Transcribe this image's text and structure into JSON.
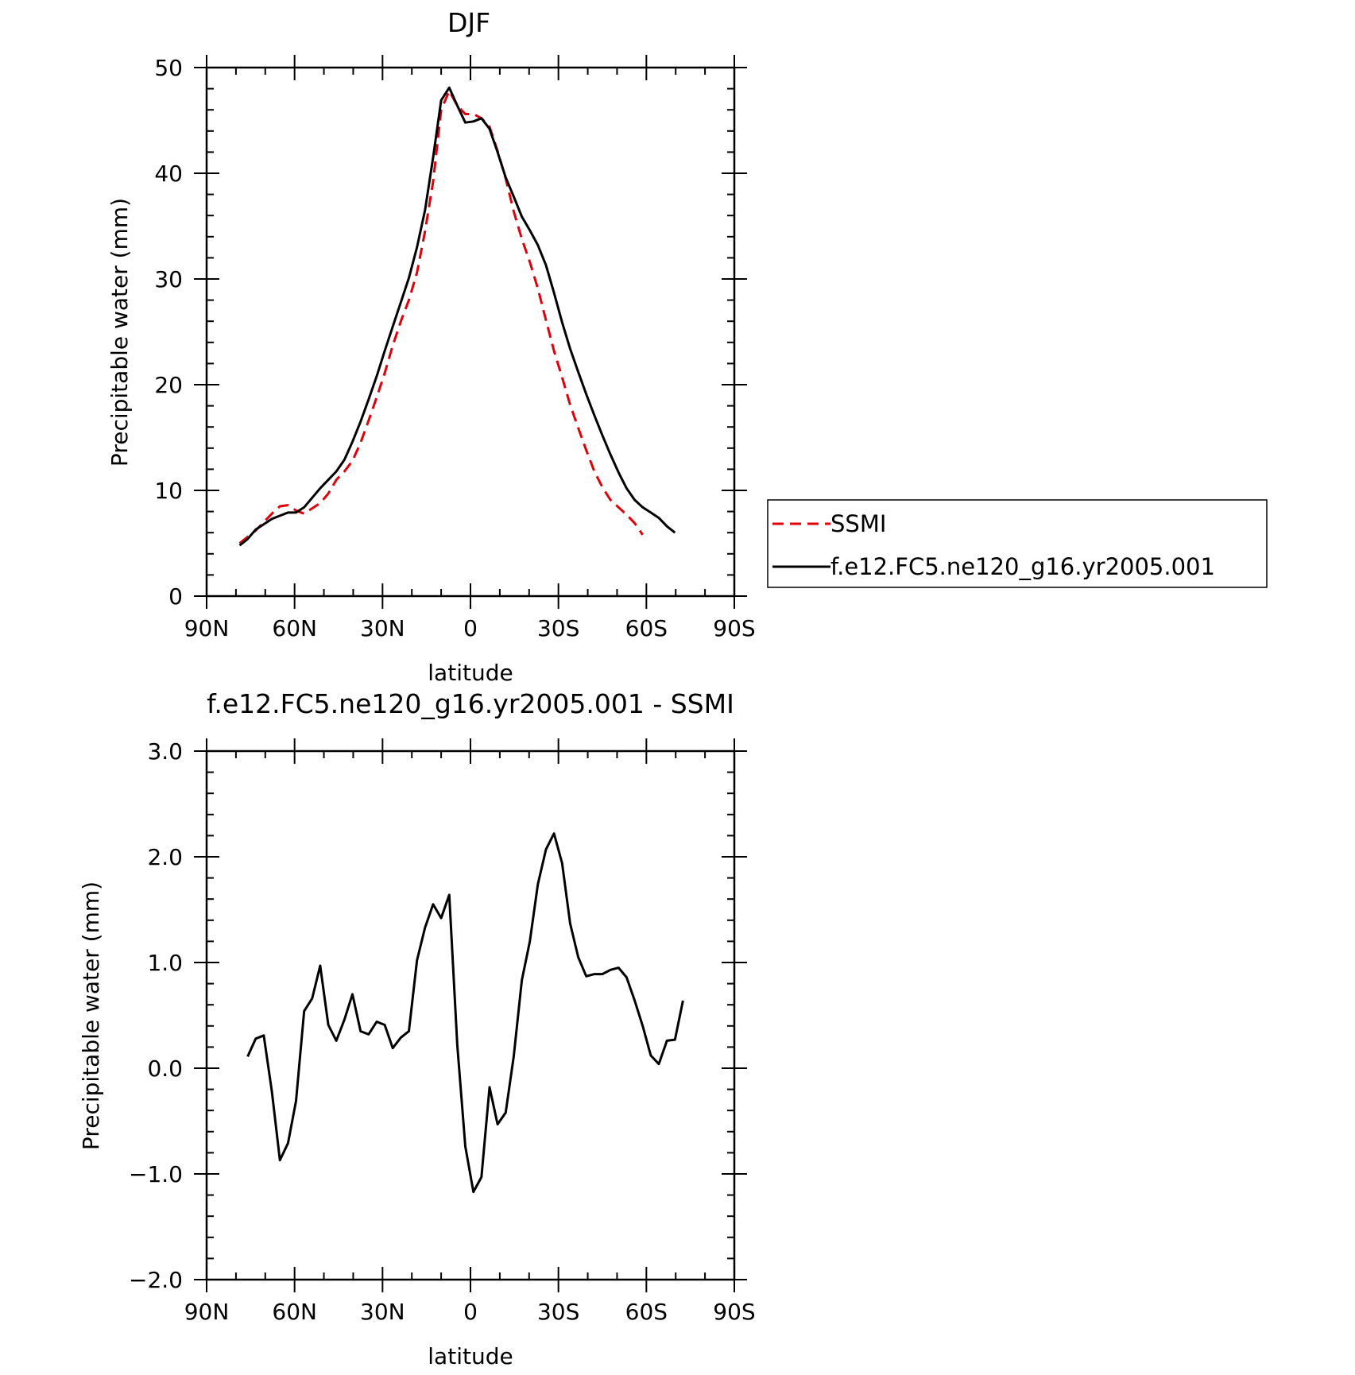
{
  "chart_data": [
    {
      "type": "line",
      "title": "DJF",
      "xlabel": "latitude",
      "ylabel": "Precipitable water (mm)",
      "xlim": [
        90,
        -90
      ],
      "ylim": [
        0,
        50
      ],
      "x_ticks": [
        90,
        60,
        30,
        0,
        -30,
        -60,
        -90
      ],
      "x_tick_labels": [
        "90N",
        "60N",
        "30N",
        "0",
        "30S",
        "60S",
        "90S"
      ],
      "y_ticks": [
        0,
        10,
        20,
        30,
        40,
        50
      ],
      "y_tick_labels": [
        "0",
        "10",
        "20",
        "30",
        "40",
        "50"
      ],
      "legend_position": "right",
      "series": [
        {
          "name": "SSMI",
          "color": "#e0000a",
          "dash": "dashed",
          "x": [
            78.75,
            76,
            73.25,
            70.5,
            67.75,
            65,
            62.25,
            59.5,
            56.75,
            54,
            51.25,
            48.5,
            45.75,
            43,
            40.25,
            37.5,
            34.75,
            32,
            29.25,
            26.5,
            23.75,
            21,
            18.25,
            15.5,
            12.75,
            10,
            7.25,
            4.5,
            1.75,
            -1,
            -3.75,
            -6.5,
            -9.25,
            -12,
            -14.75,
            -17.5,
            -20.25,
            -23,
            -25.75,
            -28.5,
            -31.25,
            -34,
            -36.75,
            -39.5,
            -42.25,
            -45,
            -47.75,
            -50.5,
            -53.25,
            -56,
            -58.75,
            -61.5,
            -64.25,
            -67,
            -69.75,
            -72.5,
            -75
          ],
          "y": [
            5.0,
            5.6,
            6.2,
            7.0,
            7.8,
            8.5,
            8.6,
            8.1,
            7.8,
            8.3,
            8.8,
            9.7,
            11.0,
            11.8,
            12.8,
            14.5,
            16.6,
            18.8,
            21.1,
            23.7,
            26.0,
            28.0,
            30.6,
            34.5,
            39.2,
            46.0,
            47.8,
            46.4,
            45.6,
            45.6,
            45.2,
            44.4,
            42.1,
            39.5,
            36.4,
            33.8,
            31.6,
            29.1,
            26.1,
            23.2,
            20.7,
            18.1,
            15.9,
            13.8,
            11.8,
            10.3,
            9.1,
            8.4,
            7.7,
            6.9,
            5.8,
            null,
            null,
            null,
            null,
            null,
            null
          ]
        },
        {
          "name": "f.e12.FC5.ne120_g16.yr2005.001",
          "color": "#000000",
          "dash": "solid",
          "x": [
            78.75,
            76,
            73.25,
            70.5,
            67.75,
            65,
            62.25,
            59.5,
            56.75,
            54,
            51.25,
            48.5,
            45.75,
            43,
            40.25,
            37.5,
            34.75,
            32,
            29.25,
            26.5,
            23.75,
            21,
            18.25,
            15.5,
            12.75,
            10,
            7.25,
            4.5,
            1.75,
            -1,
            -3.75,
            -6.5,
            -9.25,
            -12,
            -14.75,
            -17.5,
            -20.25,
            -23,
            -25.75,
            -28.5,
            -31.25,
            -34,
            -36.75,
            -39.5,
            -42.25,
            -45,
            -47.75,
            -50.5,
            -53.25,
            -56,
            -58.75,
            -61.5,
            -64.25,
            -67,
            -69.75,
            -72.5,
            -75
          ],
          "y": [
            4.8,
            5.4,
            6.3,
            6.8,
            7.3,
            7.6,
            7.9,
            7.9,
            8.4,
            9.3,
            10.2,
            11.0,
            11.8,
            12.9,
            14.6,
            16.5,
            18.6,
            20.8,
            23.2,
            25.5,
            27.8,
            30.1,
            33.0,
            36.5,
            41.5,
            46.9,
            48.1,
            46.4,
            44.8,
            44.9,
            45.2,
            44.2,
            42.0,
            39.6,
            37.8,
            35.9,
            34.6,
            33.2,
            31.3,
            28.7,
            25.9,
            23.4,
            21.2,
            19.1,
            17.1,
            15.2,
            13.4,
            11.7,
            10.2,
            9.1,
            8.4,
            7.9,
            7.4,
            6.6,
            6.0,
            null,
            null
          ]
        }
      ]
    },
    {
      "type": "line",
      "title": "f.e12.FC5.ne120_g16.yr2005.001 - SSMI",
      "xlabel": "latitude",
      "ylabel": "Precipitable water (mm)",
      "xlim": [
        90,
        -90
      ],
      "ylim": [
        -2.0,
        3.0
      ],
      "x_ticks": [
        90,
        60,
        30,
        0,
        -30,
        -60,
        -90
      ],
      "x_tick_labels": [
        "90N",
        "60N",
        "30N",
        "0",
        "30S",
        "60S",
        "90S"
      ],
      "y_ticks": [
        -2.0,
        -1.0,
        0.0,
        1.0,
        2.0,
        3.0
      ],
      "y_tick_labels": [
        "-2.0",
        "-1.0",
        "0.0",
        "1.0",
        "2.0",
        "3.0"
      ],
      "series": [
        {
          "color": "#000000",
          "dash": "solid",
          "x": [
            76,
            73.25,
            70.5,
            67.75,
            65,
            62.25,
            59.5,
            56.75,
            54,
            51.25,
            48.5,
            45.75,
            43,
            40.25,
            37.5,
            34.75,
            32,
            29.25,
            26.5,
            23.75,
            21,
            18.25,
            15.5,
            12.75,
            10,
            7.25,
            4.5,
            1.75,
            -1,
            -3.75,
            -6.5,
            -9.25,
            -12,
            -14.75,
            -17.5,
            -20.25,
            -23,
            -25.75,
            -28.5,
            -31.25,
            -34,
            -36.75,
            -39.5,
            -42.25,
            -45,
            -47.75,
            -50.5,
            -53.25,
            -56,
            -58.75,
            -61.5,
            -64.25,
            -67,
            -69.75,
            -72.5,
            -75
          ],
          "y": [
            0.11,
            0.28,
            0.31,
            -0.22,
            -0.87,
            -0.71,
            -0.31,
            0.54,
            0.66,
            0.97,
            0.41,
            0.26,
            0.46,
            0.7,
            0.35,
            0.32,
            0.44,
            0.41,
            0.19,
            0.29,
            0.35,
            1.02,
            1.33,
            1.55,
            1.42,
            1.64,
            0.22,
            -0.74,
            -1.17,
            -1.03,
            -0.18,
            -0.53,
            -0.42,
            0.11,
            0.83,
            1.2,
            1.74,
            2.07,
            2.22,
            1.94,
            1.37,
            1.05,
            0.87,
            0.89,
            0.89,
            0.93,
            0.95,
            0.86,
            0.64,
            0.4,
            0.12,
            0.04,
            0.26,
            0.27,
            0.64,
            null
          ]
        }
      ]
    }
  ]
}
